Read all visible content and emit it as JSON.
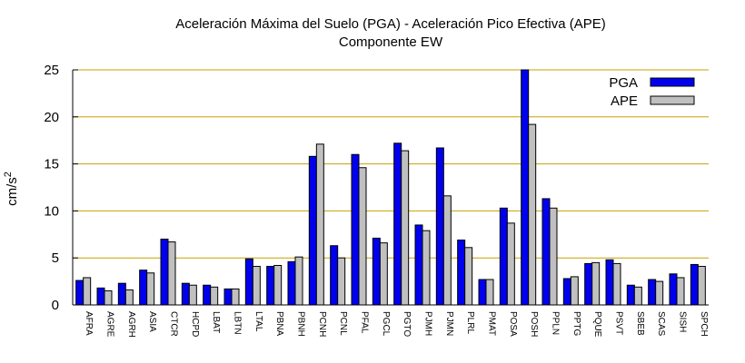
{
  "chart_data": {
    "type": "bar",
    "title": "Aceleración Máxima del Suelo (PGA) -  Aceleración Pico Efectiva (APE)",
    "subtitle": "Componente EW",
    "xlabel": "",
    "ylabel_base": "cm/s",
    "ylabel_exp": "2",
    "ylim": [
      0,
      25
    ],
    "yticks": [
      "0",
      "5",
      "10",
      "15",
      "20",
      "25"
    ],
    "grid": "horizontal",
    "legend_position": "top-right",
    "categories": [
      "AFRA",
      "AGRE",
      "AGRH",
      "ASIA",
      "CTCR",
      "HCPD",
      "LBAT",
      "LBTN",
      "LTAL",
      "PBNA",
      "PBNH",
      "PCNH",
      "PCNL",
      "PFAL",
      "PGCL",
      "PGTO",
      "PJMH",
      "PJMN",
      "PLRL",
      "PMAT",
      "POSA",
      "POSH",
      "PPLN",
      "PPTG",
      "PQUE",
      "PSVT",
      "SBEB",
      "SCAS",
      "SISH",
      "SPCH"
    ],
    "series": [
      {
        "name": "PGA",
        "color": "#0000ee",
        "values": [
          2.6,
          1.8,
          2.3,
          3.7,
          7.0,
          2.3,
          2.1,
          1.7,
          4.9,
          4.1,
          4.6,
          15.8,
          6.3,
          16.0,
          7.1,
          17.2,
          8.5,
          16.7,
          6.9,
          2.7,
          10.3,
          25.0,
          11.3,
          2.8,
          4.4,
          4.8,
          2.1,
          2.7,
          3.3,
          4.3
        ]
      },
      {
        "name": "APE",
        "color": "#c0c0c0",
        "values": [
          2.9,
          1.5,
          1.6,
          3.4,
          6.7,
          2.1,
          1.9,
          1.7,
          4.1,
          4.2,
          5.1,
          17.1,
          5.0,
          14.6,
          6.6,
          16.4,
          7.9,
          11.6,
          6.1,
          2.7,
          8.7,
          19.2,
          10.3,
          3.0,
          4.5,
          4.4,
          1.9,
          2.5,
          2.9,
          4.1
        ]
      }
    ]
  },
  "colors": {
    "grid": "#c8a000",
    "axis": "#000000",
    "bar_stroke": "#000000"
  }
}
